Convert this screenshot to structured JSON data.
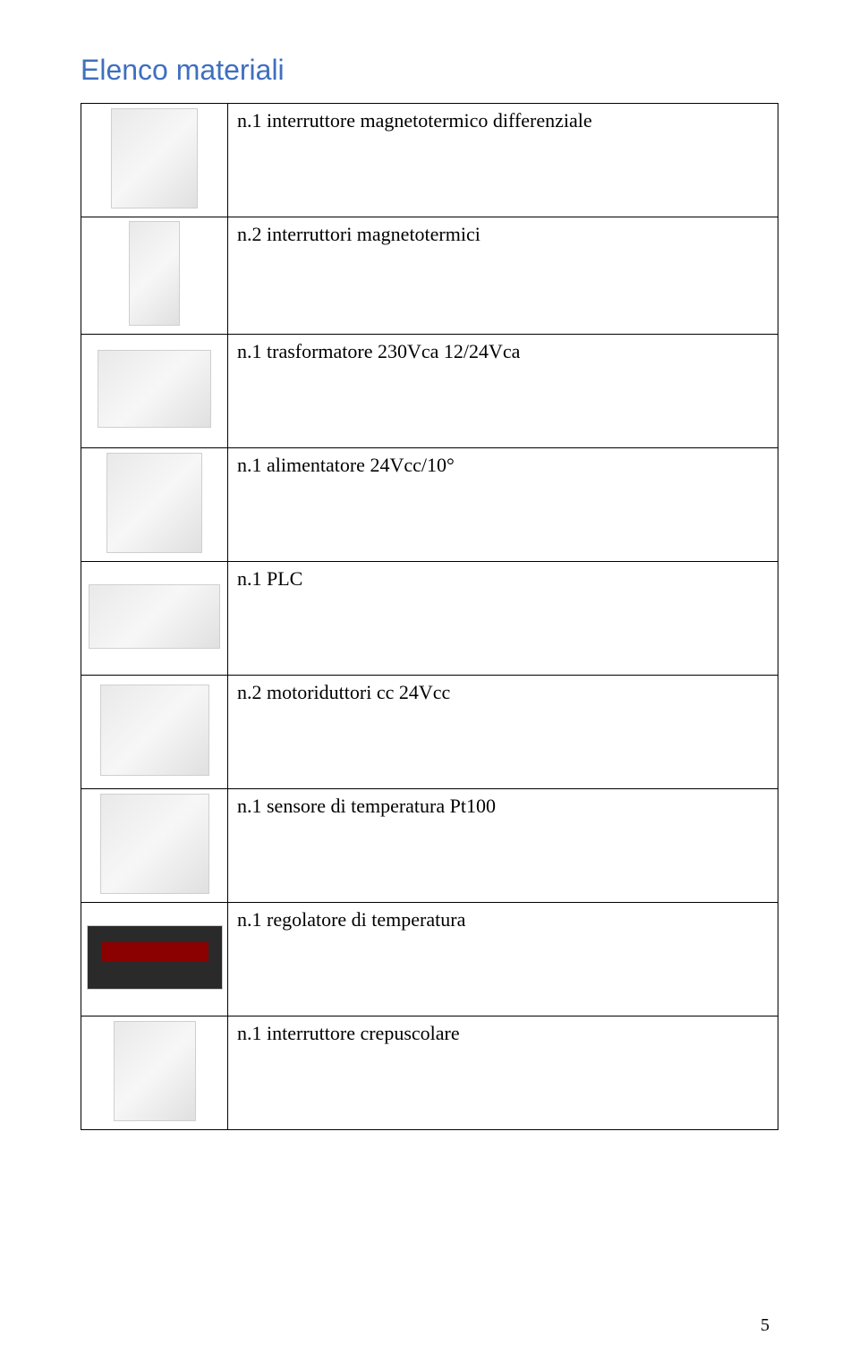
{
  "heading": "Elenco materiali",
  "items": [
    {
      "desc": "n.1 interruttore magnetotermico differenziale"
    },
    {
      "desc": "n.2 interruttori magnetotermici"
    },
    {
      "desc": "n.1 trasformatore 230Vca 12/24Vca"
    },
    {
      "desc": "n.1 alimentatore 24Vcc/10°"
    },
    {
      "desc": "n.1 PLC"
    },
    {
      "desc": "n.2 motoriduttori cc 24Vcc"
    },
    {
      "desc": "n.1 sensore di temperatura Pt100"
    },
    {
      "desc": "n.1 regolatore di temperatura"
    },
    {
      "desc": "n.1 interruttore crepuscolare"
    }
  ],
  "page_number": "5",
  "colors": {
    "heading": "#3f6fbf",
    "border": "#000000",
    "background": "#ffffff",
    "body_text": "#000000"
  },
  "typography": {
    "heading_font": "Verdana",
    "heading_size_pt": 24,
    "body_font": "Times New Roman",
    "body_size_pt": 16
  }
}
